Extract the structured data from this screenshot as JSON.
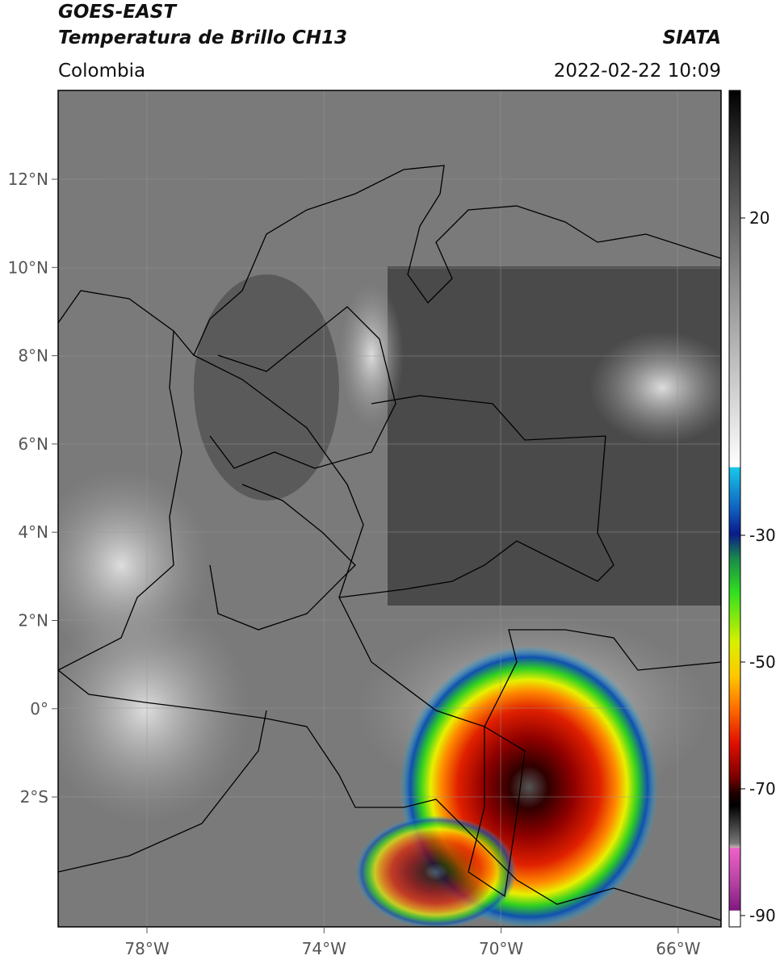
{
  "header": {
    "title": "GOES-EAST",
    "subtitle": "Temperatura de Brillo CH13",
    "source": "SIATA",
    "region": "Colombia",
    "datetime": "2022-02-22 10:09"
  },
  "map": {
    "lat_labels": [
      "12°N",
      "10°N",
      "8°N",
      "6°N",
      "4°N",
      "2°N",
      "0°",
      "2°S"
    ],
    "lon_labels": [
      "78°W",
      "74°W",
      "70°W",
      "66°W"
    ]
  },
  "colorbar": {
    "ticks": [
      20,
      -30,
      -50,
      -70,
      -90
    ]
  }
}
